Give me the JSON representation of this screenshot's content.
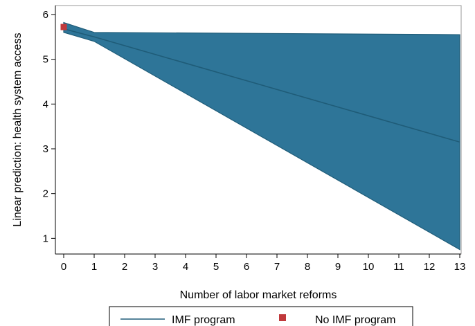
{
  "chart_data": {
    "type": "area",
    "xlabel": "Number of labor market reforms",
    "ylabel": "Linear prediction: health system access",
    "xlim": [
      0,
      13
    ],
    "ylim": [
      0.65,
      6.2
    ],
    "xticks": [
      0,
      1,
      2,
      3,
      4,
      5,
      6,
      7,
      8,
      9,
      10,
      11,
      12,
      13
    ],
    "yticks": [
      1,
      2,
      3,
      4,
      5,
      6
    ],
    "grid": false,
    "legend_position": "bottom",
    "colors": {
      "band_fill": "#2e7598",
      "band_line": "#1f5c78",
      "point_marker": "#c0393b",
      "frame": "#999999"
    },
    "series": [
      {
        "name": "IMF program",
        "kind": "line_with_ci",
        "x": [
          0,
          1,
          13
        ],
        "y": [
          5.68,
          5.5,
          3.15
        ],
        "ci_upper": [
          5.82,
          5.6,
          5.55
        ],
        "ci_lower": [
          5.6,
          5.4,
          0.75
        ]
      },
      {
        "name": "No IMF program",
        "kind": "point",
        "x": [
          0
        ],
        "y": [
          5.72
        ]
      }
    ]
  }
}
